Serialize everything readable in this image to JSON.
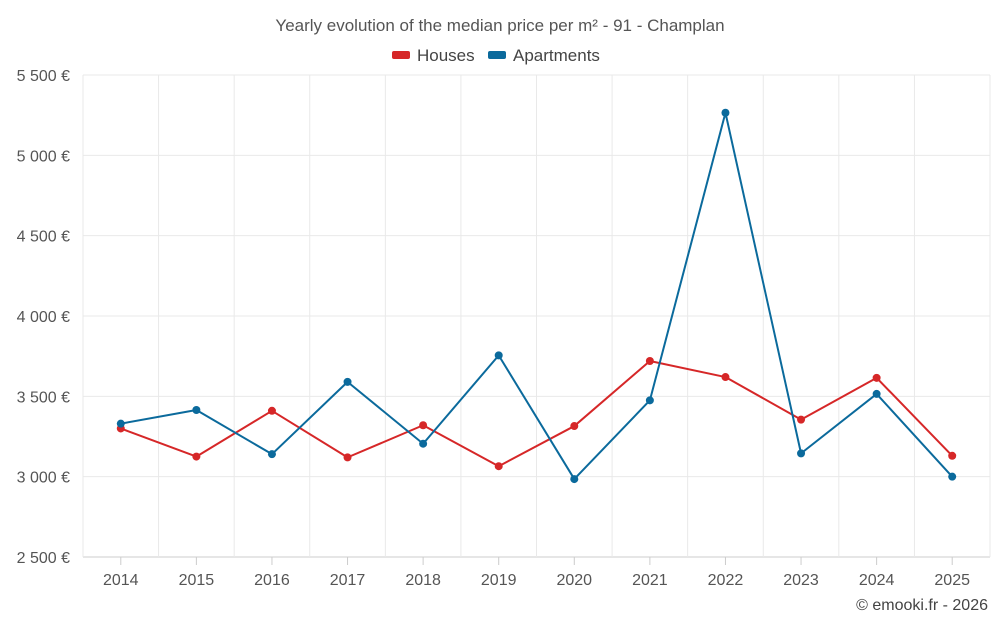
{
  "chart_data": {
    "type": "line",
    "title": "Yearly evolution of the median price per m² - 91 - Champlan",
    "categories": [
      "2014",
      "2015",
      "2016",
      "2017",
      "2018",
      "2019",
      "2020",
      "2021",
      "2022",
      "2023",
      "2024",
      "2025"
    ],
    "y_ticks": [
      "5 500 €",
      "5 000 €",
      "4 500 €",
      "4 000 €",
      "3 500 €",
      "3 000 €",
      "2 500 €"
    ],
    "y_tick_values": [
      5500,
      5000,
      4500,
      4000,
      3500,
      3000,
      2500
    ],
    "ylim": [
      2500,
      5500
    ],
    "xlabel": "",
    "ylabel": "",
    "grid": true,
    "legend_position": "top-center",
    "series": [
      {
        "name": "Houses",
        "color": "#d62728",
        "values": [
          3300,
          3125,
          3410,
          3120,
          3320,
          3065,
          3315,
          3720,
          3620,
          3355,
          3615,
          3130
        ]
      },
      {
        "name": "Apartments",
        "color": "#0b6a9c",
        "values": [
          3330,
          3415,
          3140,
          3590,
          3205,
          3755,
          2985,
          3475,
          5265,
          3145,
          3515,
          3000
        ]
      }
    ]
  },
  "credit": "© emooki.fr - 2026"
}
